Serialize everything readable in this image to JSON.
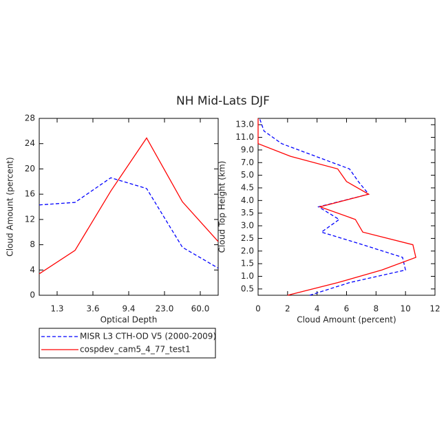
{
  "title": "NH Mid-Lats DJF",
  "chart_data": [
    {
      "type": "line",
      "xlabel": "Optical Depth",
      "ylabel": "Cloud Amount (percent)",
      "x": [
        0,
        1,
        2,
        3,
        4,
        5
      ],
      "xlim": [
        0,
        5
      ],
      "xticks": [
        {
          "value": 0.5,
          "label": "1.3"
        },
        {
          "value": 1.5,
          "label": "3.6"
        },
        {
          "value": 2.5,
          "label": "9.4"
        },
        {
          "value": 3.5,
          "label": "23.0"
        },
        {
          "value": 4.5,
          "label": "60.0"
        }
      ],
      "ylim": [
        0,
        28
      ],
      "yticks": [
        0,
        4,
        8,
        12,
        16,
        20,
        24,
        28
      ],
      "series": [
        {
          "name": "MISR L3 CTH-OD V5 (2000-2009)",
          "color": "#0000ff",
          "dash": true,
          "values": [
            14.3,
            14.7,
            18.6,
            16.9,
            7.6,
            4.3
          ]
        },
        {
          "name": "cospdev_cam5_4_77_test1",
          "color": "#ff0000",
          "dash": false,
          "values": [
            3.4,
            7.1,
            16.5,
            24.9,
            14.8,
            8.5
          ]
        }
      ]
    },
    {
      "type": "hline",
      "xlabel": "Cloud Amount (percent)",
      "ylabel": "Cloud Top Height (km)",
      "y": [
        0,
        1,
        2,
        3,
        4,
        5,
        6,
        7,
        8,
        9,
        10,
        11,
        12,
        13,
        14
      ],
      "ylim": [
        0,
        14
      ],
      "yticks": [
        {
          "value": 0.5,
          "label": "0.5"
        },
        {
          "value": 1.5,
          "label": "1.0"
        },
        {
          "value": 2.5,
          "label": "1.5"
        },
        {
          "value": 3.5,
          "label": "2.0"
        },
        {
          "value": 4.5,
          "label": "2.5"
        },
        {
          "value": 5.5,
          "label": "3.0"
        },
        {
          "value": 6.5,
          "label": "3.5"
        },
        {
          "value": 7.5,
          "label": "4.0"
        },
        {
          "value": 8.5,
          "label": "4.5"
        },
        {
          "value": 9.5,
          "label": "5.0"
        },
        {
          "value": 10.5,
          "label": "7.0"
        },
        {
          "value": 11.5,
          "label": "9.0"
        },
        {
          "value": 12.5,
          "label": "11.0"
        },
        {
          "value": 13.5,
          "label": "13.0"
        }
      ],
      "xlim": [
        0,
        12
      ],
      "xticks": [
        0,
        2,
        4,
        6,
        8,
        10,
        12
      ],
      "series": [
        {
          "color": "#0000ff",
          "dash": true,
          "values": [
            3.5,
            6.2,
            10.0,
            9.8,
            7.1,
            4.3,
            5.5,
            4.1,
            7.5,
            6.8,
            6.2,
            3.9,
            1.6,
            0.4,
            0.1
          ]
        },
        {
          "color": "#ff0000",
          "dash": false,
          "values": [
            2.0,
            5.4,
            8.4,
            10.7,
            10.5,
            7.1,
            6.6,
            4.2,
            7.5,
            6.0,
            5.4,
            2.2,
            0.0,
            0.0,
            0.0
          ]
        }
      ]
    }
  ]
}
